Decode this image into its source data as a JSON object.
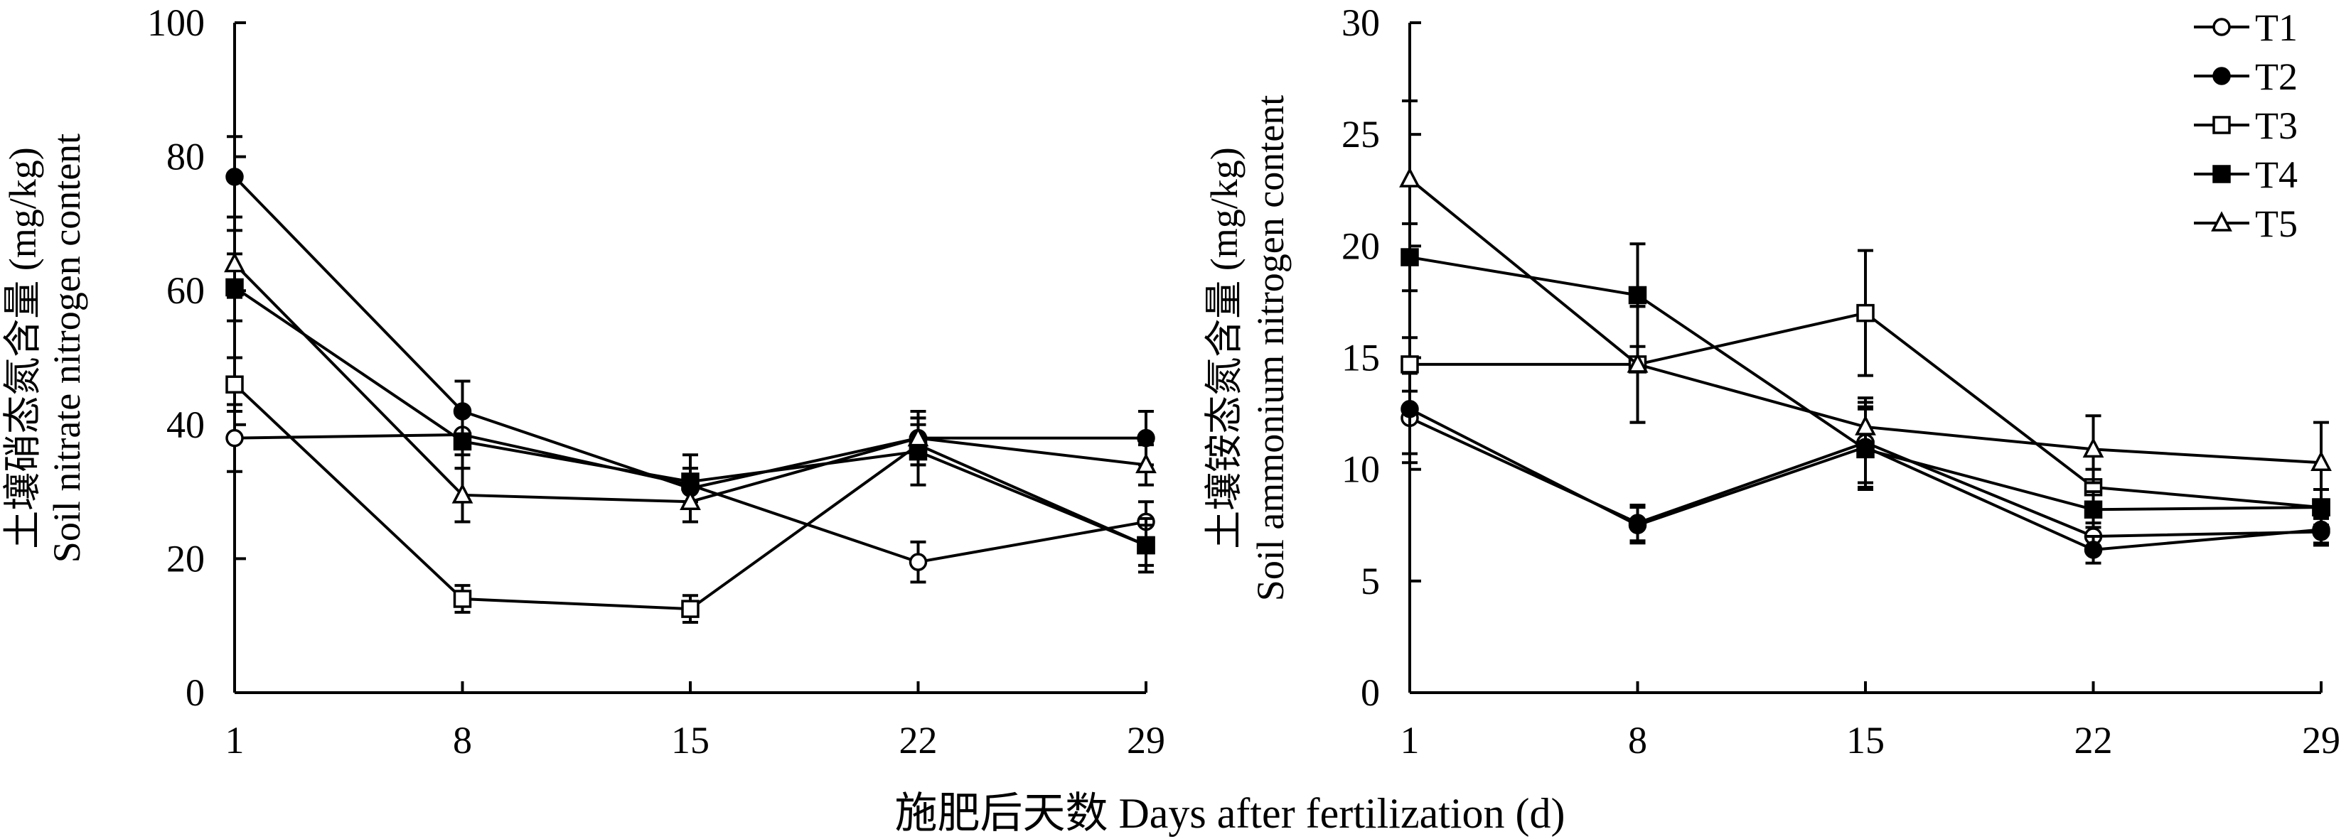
{
  "chart_data": [
    {
      "type": "line",
      "title": "",
      "ylabel_cn": "土壤硝态氮含量 (mg/kg)",
      "ylabel_en": "Soil nitrate nitrogen content",
      "xlabel": "",
      "categories": [
        1,
        8,
        15,
        22,
        29
      ],
      "ylim": [
        0,
        100
      ],
      "yticks": [
        0,
        20,
        40,
        60,
        80,
        100
      ],
      "series": [
        {
          "name": "T1",
          "marker": "circle-open",
          "values": [
            38,
            38.5,
            31,
            19.5,
            25.5
          ],
          "errors": [
            5,
            3,
            2.5,
            3,
            3
          ]
        },
        {
          "name": "T2",
          "marker": "circle-filled",
          "values": [
            77,
            42,
            30.5,
            38,
            38
          ],
          "errors": [
            6,
            4.5,
            3,
            4,
            4
          ]
        },
        {
          "name": "T3",
          "marker": "square-open",
          "values": [
            46,
            14,
            12.5,
            37,
            22
          ],
          "errors": [
            4,
            2,
            2,
            3,
            3
          ]
        },
        {
          "name": "T4",
          "marker": "square-filled",
          "values": [
            60.5,
            37.5,
            31.5,
            36,
            22
          ],
          "errors": [
            5,
            4,
            4,
            5,
            4
          ]
        },
        {
          "name": "T5",
          "marker": "triangle-open",
          "values": [
            64,
            29.5,
            28.5,
            38,
            34
          ],
          "errors": [
            5,
            4,
            3,
            3,
            3
          ]
        }
      ]
    },
    {
      "type": "line",
      "title": "",
      "ylabel_cn": "土壤铵态氮含量 (mg/kg)",
      "ylabel_en": "Soil ammonium nitrogen content",
      "xlabel": "",
      "categories": [
        1,
        8,
        15,
        22,
        29
      ],
      "ylim": [
        0,
        30
      ],
      "yticks": [
        0,
        5,
        10,
        15,
        20,
        25,
        30
      ],
      "series": [
        {
          "name": "T1",
          "marker": "circle-open",
          "values": [
            12.3,
            7.6,
            11.2,
            7.0,
            7.2
          ],
          "errors": [
            2,
            0.8,
            1.8,
            0.6,
            0.6
          ]
        },
        {
          "name": "T2",
          "marker": "circle-filled",
          "values": [
            12.7,
            7.5,
            11.0,
            6.4,
            7.3
          ],
          "errors": [
            2,
            0.8,
            1.8,
            0.6,
            0.6
          ]
        },
        {
          "name": "T3",
          "marker": "square-open",
          "values": [
            14.7,
            14.7,
            17.0,
            9.2,
            8.3
          ],
          "errors": [
            1.2,
            2.6,
            2.8,
            0.8,
            0.8
          ]
        },
        {
          "name": "T4",
          "marker": "square-filled",
          "values": [
            19.5,
            17.8,
            10.9,
            8.2,
            8.3
          ],
          "errors": [
            1.5,
            2.3,
            1.8,
            0.8,
            0.8
          ]
        },
        {
          "name": "T5",
          "marker": "triangle-open",
          "values": [
            23.0,
            14.7,
            11.9,
            10.9,
            10.3
          ],
          "errors": [
            3.5,
            2.6,
            1.3,
            1.5,
            1.8
          ]
        }
      ]
    }
  ],
  "shared": {
    "xlabel": "施肥后天数 Days after fertilization (d)",
    "xticks": [
      "1",
      "8",
      "15",
      "22",
      "29"
    ]
  },
  "legend": {
    "position": "top-right",
    "entries": [
      "T1",
      "T2",
      "T3",
      "T4",
      "T5"
    ]
  }
}
